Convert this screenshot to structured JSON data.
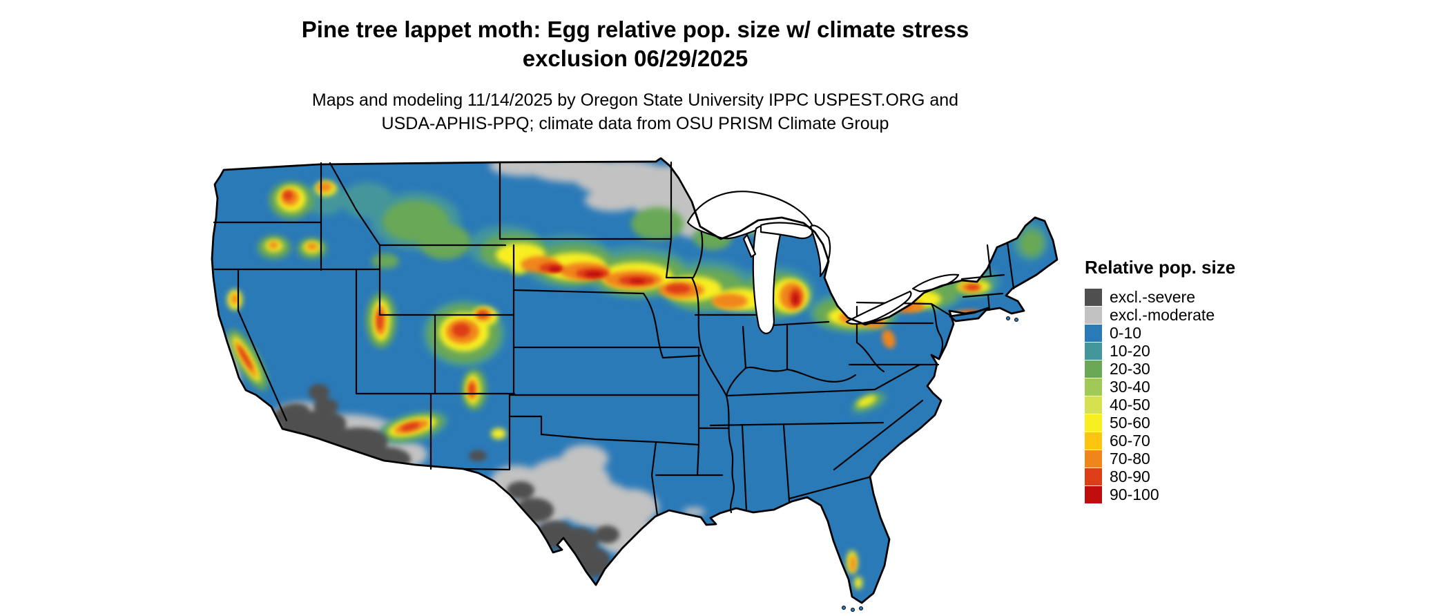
{
  "header": {
    "title_line1": "Pine tree lappet moth: Egg relative pop. size w/ climate stress",
    "title_line2": "exclusion 06/29/2025",
    "subtitle_line1": "Maps and modeling 11/14/2025 by Oregon State University IPPC USPEST.ORG and",
    "subtitle_line2": "USDA-APHIS-PPQ; climate data from OSU PRISM Climate Group"
  },
  "legend": {
    "title": "Relative pop. size",
    "items": [
      {
        "label": "excl.-severe",
        "color": "#4f4f4f"
      },
      {
        "label": "excl.-moderate",
        "color": "#c2c2c2"
      },
      {
        "label": "0-10",
        "color": "#2b7ab8"
      },
      {
        "label": "10-20",
        "color": "#45969b"
      },
      {
        "label": "20-30",
        "color": "#69a856"
      },
      {
        "label": "30-40",
        "color": "#9fca58"
      },
      {
        "label": "40-50",
        "color": "#d6e14f"
      },
      {
        "label": "50-60",
        "color": "#f8ef20"
      },
      {
        "label": "60-70",
        "color": "#fdc50f"
      },
      {
        "label": "70-80",
        "color": "#f0851c"
      },
      {
        "label": "80-90",
        "color": "#dd3d17"
      },
      {
        "label": "90-100",
        "color": "#c00d0d"
      }
    ]
  },
  "map": {
    "region": "Conterminous United States"
  }
}
